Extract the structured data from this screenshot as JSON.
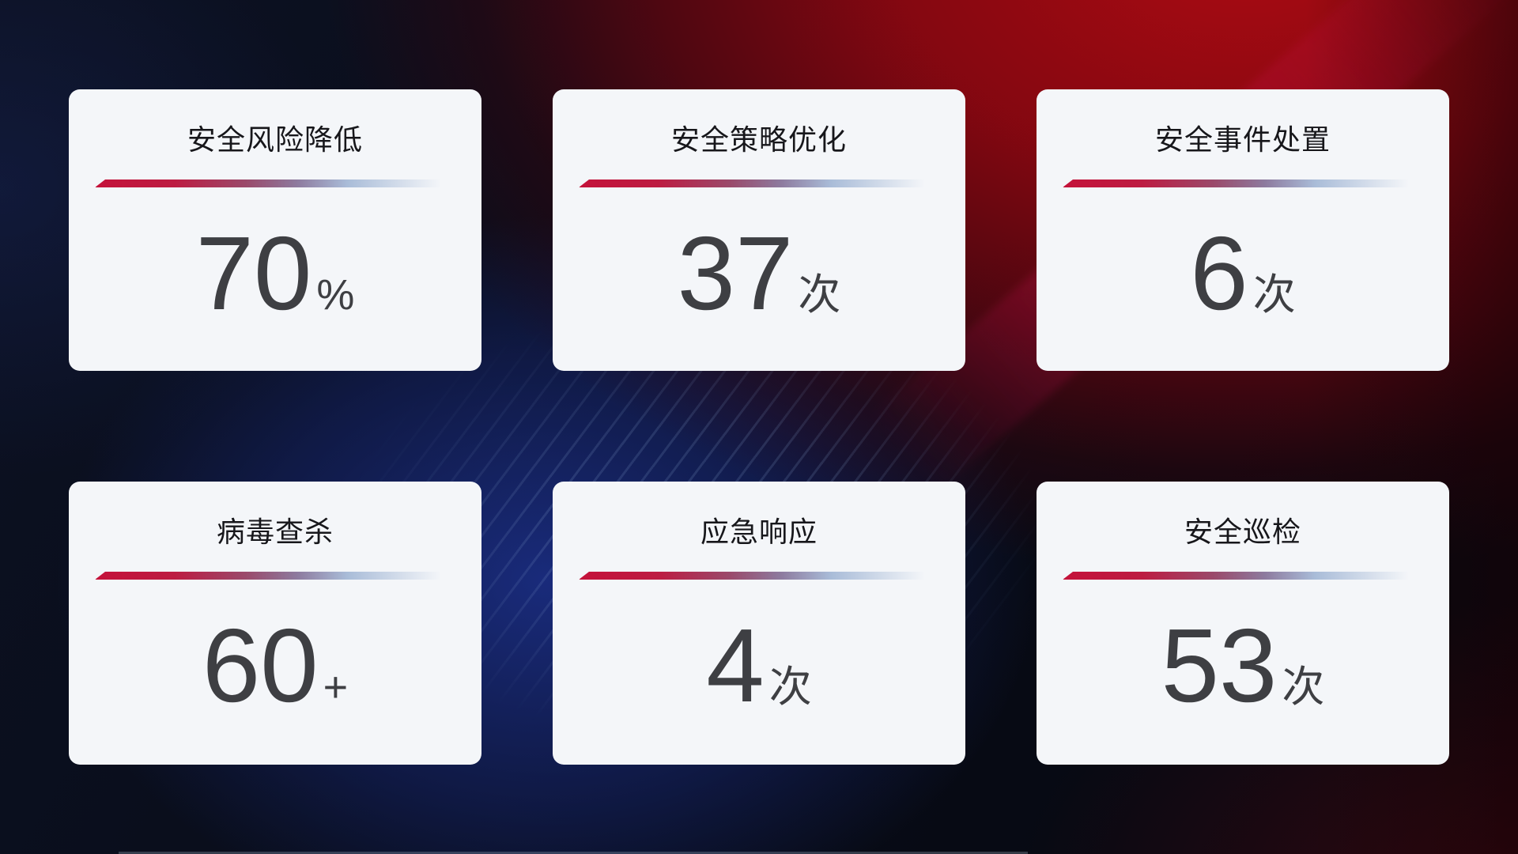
{
  "background": {
    "base_dark": "#090d1a",
    "red_glow": "#b20b12",
    "deep_red": "#5e0310",
    "blue_glow": "#1c308c",
    "streak_line_color": "#96b4dc",
    "magenta_band_color": "#d6125c",
    "bottom_edge_line_color": "#aab9cd"
  },
  "card_style": {
    "card_bg": "#f4f6f9",
    "title_color": "#17171b",
    "value_color": "#3e3f43",
    "divider_start": "#c4123a",
    "divider_mid": "#8d7a9e",
    "divider_end": "#a9bcd8"
  },
  "cards": [
    {
      "title": "安全风险降低",
      "value": "70",
      "unit": "%"
    },
    {
      "title": "安全策略优化",
      "value": "37",
      "unit": "次"
    },
    {
      "title": "安全事件处置",
      "value": "6",
      "unit": "次"
    },
    {
      "title": "病毒查杀",
      "value": "60",
      "unit": "+"
    },
    {
      "title": "应急响应",
      "value": "4",
      "unit": "次"
    },
    {
      "title": "安全巡检",
      "value": "53",
      "unit": "次"
    }
  ]
}
